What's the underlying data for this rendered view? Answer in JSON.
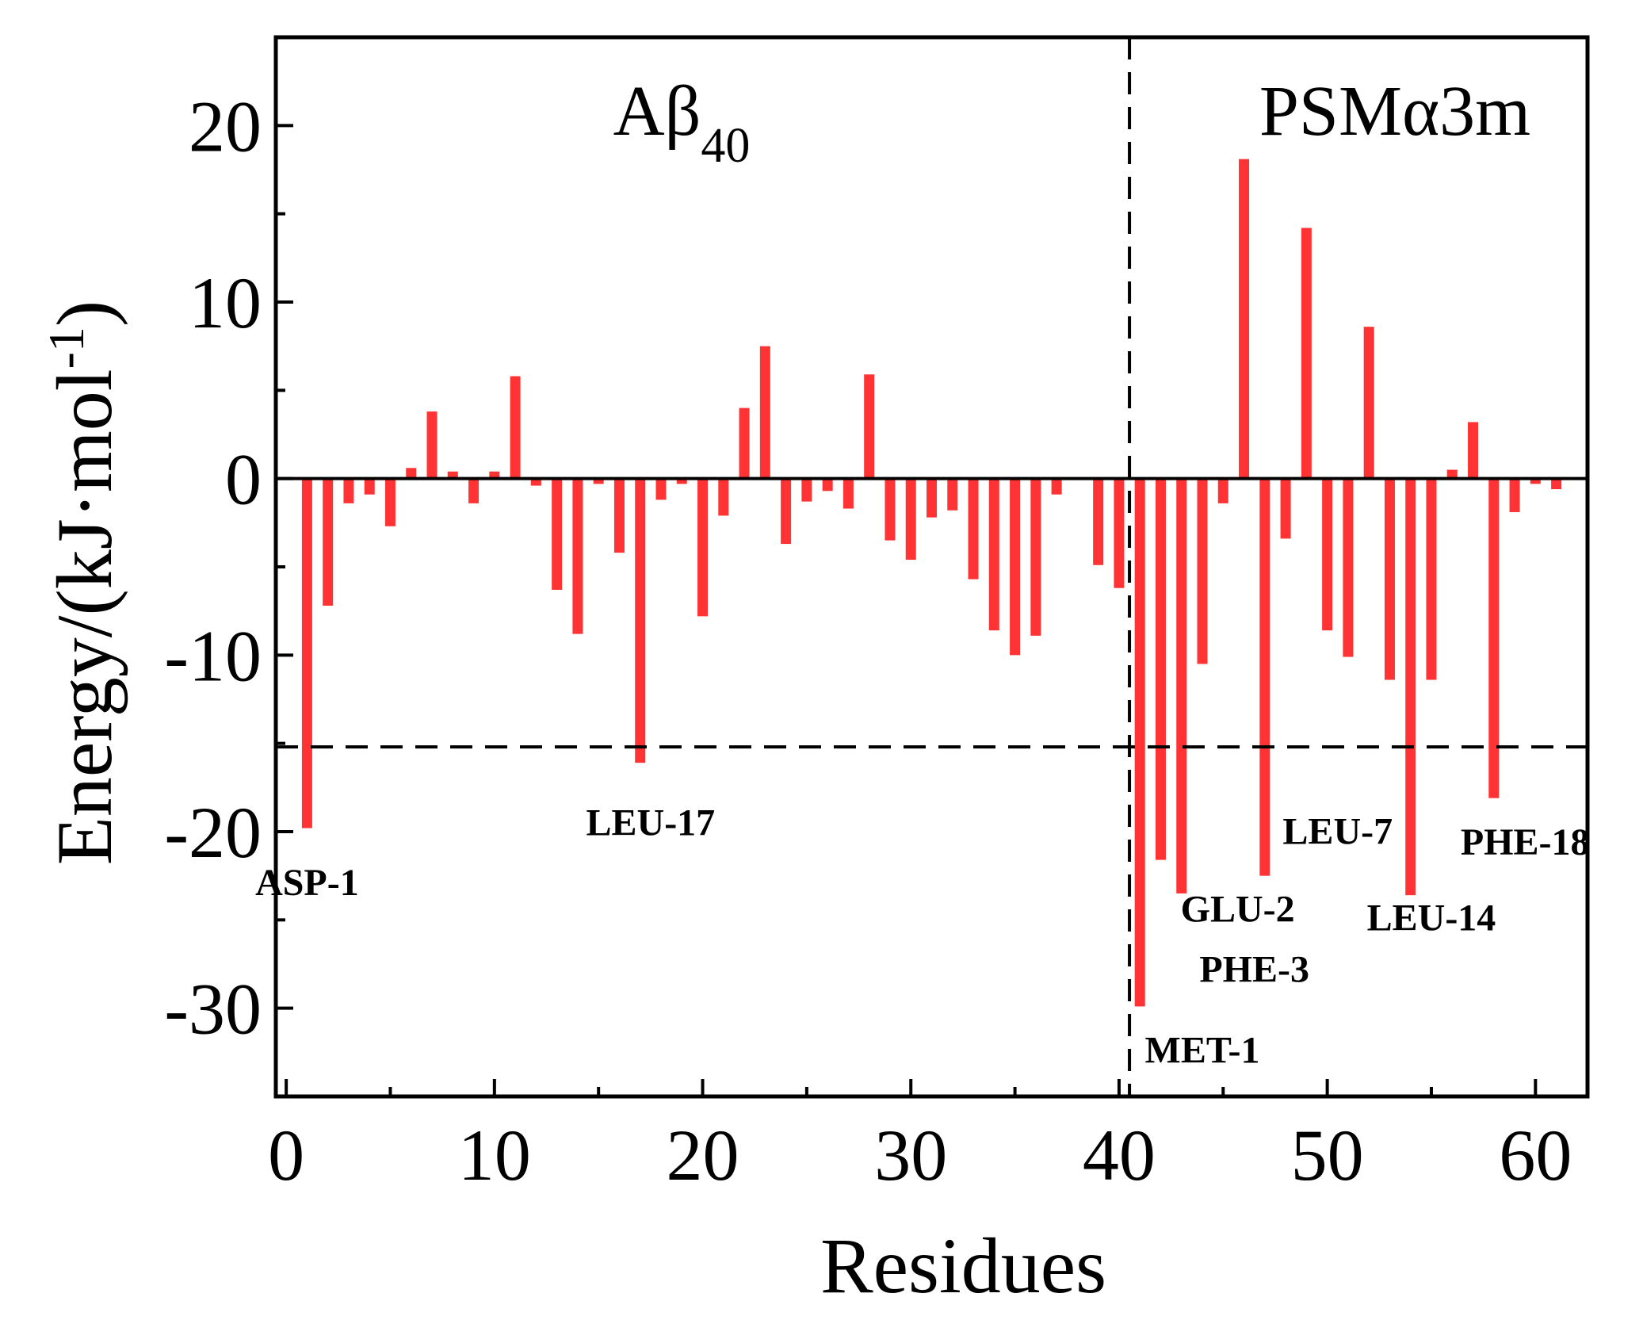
{
  "chart_data": {
    "type": "bar",
    "xlabel": "Residues",
    "ylabel": "Energy/(kJ·mol",
    "ylabel_sup": "-1",
    "ylabel_close": ")",
    "xlim": [
      -0.5,
      62.5
    ],
    "ylim": [
      -35,
      25
    ],
    "xticks": [
      0,
      10,
      20,
      30,
      40,
      50,
      60
    ],
    "yticks": [
      20,
      10,
      0,
      -10,
      -20,
      -30
    ],
    "xtick_labels": [
      "0",
      "10",
      "20",
      "30",
      "40",
      "50",
      "60"
    ],
    "ytick_labels": [
      "20",
      "10",
      "0",
      "-10",
      "-20",
      "-30"
    ],
    "bar_color": "#ff3333",
    "threshold": -15.2,
    "divider_x": 40.5,
    "regions": [
      {
        "name": "Aβ",
        "subscript": "40"
      },
      {
        "name": "PSMα3m",
        "subscript": ""
      }
    ],
    "series": [
      {
        "name": "Energy",
        "x": [
          1,
          2,
          3,
          4,
          5,
          6,
          7,
          8,
          9,
          10,
          11,
          12,
          13,
          14,
          15,
          16,
          17,
          18,
          19,
          20,
          21,
          22,
          23,
          24,
          25,
          26,
          27,
          28,
          29,
          30,
          31,
          32,
          33,
          34,
          35,
          36,
          37,
          38,
          39,
          40,
          41,
          42,
          43,
          44,
          45,
          46,
          47,
          48,
          49,
          50,
          51,
          52,
          53,
          54,
          55,
          56,
          57,
          58,
          59,
          60,
          61
        ],
        "values": [
          -19.8,
          -7.2,
          -1.4,
          -0.9,
          -2.7,
          0.6,
          3.8,
          0.4,
          -1.4,
          0.4,
          5.8,
          -0.4,
          -6.3,
          -8.8,
          -0.3,
          -4.2,
          -16.1,
          -1.2,
          -0.3,
          -7.8,
          -2.1,
          4.0,
          7.5,
          -3.7,
          -1.3,
          -0.7,
          -1.7,
          5.9,
          -3.5,
          -4.6,
          -2.2,
          -1.8,
          -5.7,
          -8.6,
          -10.0,
          -8.9,
          -0.9,
          0.0,
          -4.9,
          -6.2,
          -29.9,
          -21.6,
          -23.5,
          -10.5,
          -1.4,
          18.1,
          -22.5,
          -3.4,
          14.2,
          -8.6,
          -10.1,
          8.6,
          -11.4,
          -23.6,
          -11.4,
          0.5,
          3.2,
          -18.1,
          -1.9,
          -0.3,
          -0.6
        ]
      }
    ],
    "annotations": [
      {
        "text": "ASP-1",
        "x": 1,
        "y": -23.6
      },
      {
        "text": "LEU-17",
        "x": 17.5,
        "y": -20.2
      },
      {
        "text": "MET-1",
        "x": 44,
        "y": -33.1
      },
      {
        "text": "GLU-2",
        "x": 45.7,
        "y": -25.1
      },
      {
        "text": "PHE-3",
        "x": 46.5,
        "y": -28.5
      },
      {
        "text": "LEU-7",
        "x": 50.5,
        "y": -20.7
      },
      {
        "text": "LEU-14",
        "x": 55,
        "y": -25.6
      },
      {
        "text": "PHE-18",
        "x": 59.5,
        "y": -21.3
      }
    ]
  }
}
